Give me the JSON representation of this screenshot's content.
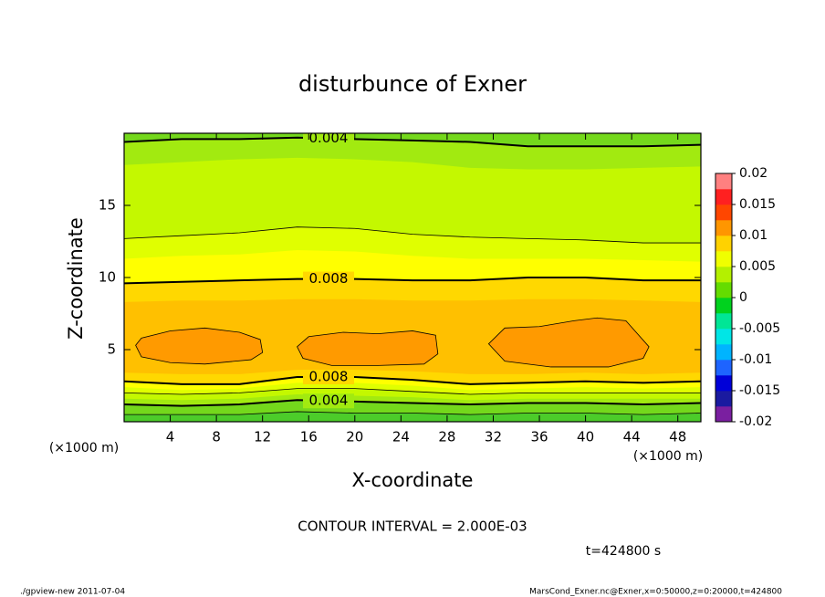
{
  "chart_data": {
    "type": "contour",
    "title": "disturbunce of Exner",
    "xlabel": "X-coordinate",
    "ylabel": "Z-coordinate",
    "x_unit": "(×1000 m)",
    "y_unit": "(×1000 m)",
    "xlim": [
      0,
      50
    ],
    "ylim": [
      0,
      20
    ],
    "xticks": [
      4,
      8,
      12,
      16,
      20,
      24,
      28,
      32,
      36,
      40,
      44,
      48
    ],
    "yticks": [
      5,
      10,
      15
    ],
    "contour_interval": 0.002,
    "contour_interval_text": "CONTOUR INTERVAL = 2.000E-03",
    "time_text": "t=424800 s",
    "footer_left": "./gpview-new  2011-07-04",
    "footer_right": "MarsCond_Exner.nc@Exner,x=0:50000,z=0:20000,t=424800",
    "background_color": "#4ccc2a",
    "x": [
      0,
      5,
      10,
      15,
      20,
      25,
      30,
      35,
      40,
      45,
      50
    ],
    "bands": [
      {
        "level": 0.002,
        "color": "#74d81c",
        "upper": null,
        "lower": [
          0.5,
          0.5,
          0.5,
          0.7,
          0.6,
          0.6,
          0.5,
          0.6,
          0.6,
          0.5,
          0.6
        ]
      },
      {
        "level": 0.004,
        "color": "#a2ea10",
        "upper": [
          19.4,
          19.6,
          19.6,
          19.7,
          19.6,
          19.5,
          19.4,
          19.1,
          19.1,
          19.1,
          19.2
        ],
        "lower": [
          1.2,
          1.1,
          1.2,
          1.5,
          1.4,
          1.3,
          1.2,
          1.3,
          1.3,
          1.2,
          1.3
        ]
      },
      {
        "level": 0.005,
        "color": "#c4f800",
        "upper": [
          17.8,
          18.0,
          18.2,
          18.3,
          18.2,
          18.0,
          17.6,
          17.5,
          17.5,
          17.6,
          17.7
        ],
        "lower": [
          1.6,
          1.5,
          1.6,
          1.9,
          1.8,
          1.7,
          1.5,
          1.6,
          1.6,
          1.6,
          1.6
        ]
      },
      {
        "level": 0.006,
        "color": "#e0ff00",
        "upper": [
          12.7,
          12.9,
          13.1,
          13.5,
          13.4,
          13.0,
          12.8,
          12.7,
          12.6,
          12.4,
          12.4
        ],
        "lower": [
          2.0,
          1.9,
          2.0,
          2.3,
          2.3,
          2.1,
          1.9,
          2.0,
          2.0,
          2.0,
          2.0
        ]
      },
      {
        "level": 0.007,
        "color": "#ffff00",
        "upper": [
          11.3,
          11.5,
          11.6,
          11.9,
          11.8,
          11.5,
          11.3,
          11.3,
          11.3,
          11.2,
          11.1
        ],
        "lower": [
          2.4,
          2.2,
          2.3,
          2.7,
          2.7,
          2.5,
          2.2,
          2.3,
          2.4,
          2.3,
          2.4
        ]
      },
      {
        "level": 0.008,
        "color": "#ffd800",
        "upper": [
          9.6,
          9.7,
          9.8,
          9.9,
          9.9,
          9.8,
          9.8,
          10.0,
          10.0,
          9.8,
          9.8
        ],
        "lower": [
          2.8,
          2.6,
          2.6,
          3.1,
          3.1,
          2.9,
          2.6,
          2.7,
          2.8,
          2.7,
          2.8
        ]
      },
      {
        "level": 0.009,
        "color": "#ffc000",
        "upper": [
          8.3,
          8.4,
          8.4,
          8.5,
          8.5,
          8.4,
          8.4,
          8.5,
          8.5,
          8.4,
          8.3
        ],
        "lower": [
          3.4,
          3.3,
          3.3,
          3.6,
          3.6,
          3.5,
          3.3,
          3.3,
          3.4,
          3.3,
          3.4
        ]
      }
    ],
    "cells": [
      {
        "level": 0.01,
        "color": "#ff9a00",
        "x": [
          1,
          1.5,
          4,
          7,
          10,
          11.8,
          12,
          11,
          7,
          4,
          1.5
        ],
        "z": [
          5.3,
          5.8,
          6.3,
          6.5,
          6.2,
          5.7,
          4.8,
          4.3,
          4.0,
          4.1,
          4.5
        ]
      },
      {
        "level": 0.01,
        "color": "#ff9a00",
        "x": [
          15,
          16,
          19,
          22,
          25,
          27,
          27.2,
          26,
          22,
          18,
          15.5
        ],
        "z": [
          5.2,
          5.9,
          6.2,
          6.1,
          6.3,
          6.0,
          4.7,
          4.0,
          3.9,
          3.9,
          4.4
        ]
      },
      {
        "level": 0.01,
        "color": "#ff9a00",
        "x": [
          31.6,
          33,
          36,
          39,
          41,
          43.5,
          45.5,
          45,
          42,
          37,
          33
        ],
        "z": [
          5.4,
          6.5,
          6.6,
          7.0,
          7.2,
          7.0,
          5.2,
          4.4,
          3.8,
          3.8,
          4.2
        ]
      }
    ],
    "colorbar": {
      "lim": [
        -0.02,
        0.02
      ],
      "ticks": [
        0.02,
        0.015,
        0.01,
        0.005,
        0,
        -0.005,
        -0.01,
        -0.015,
        -0.02
      ],
      "colors": [
        "#7a1fa0",
        "#1a1aa0",
        "#0000d8",
        "#1e64ff",
        "#00b4ff",
        "#00e6e6",
        "#00e696",
        "#00d21e",
        "#64dc00",
        "#b4f000",
        "#f0ff00",
        "#ffd200",
        "#ff9600",
        "#ff4600",
        "#ff2020",
        "#ff8080"
      ]
    }
  }
}
